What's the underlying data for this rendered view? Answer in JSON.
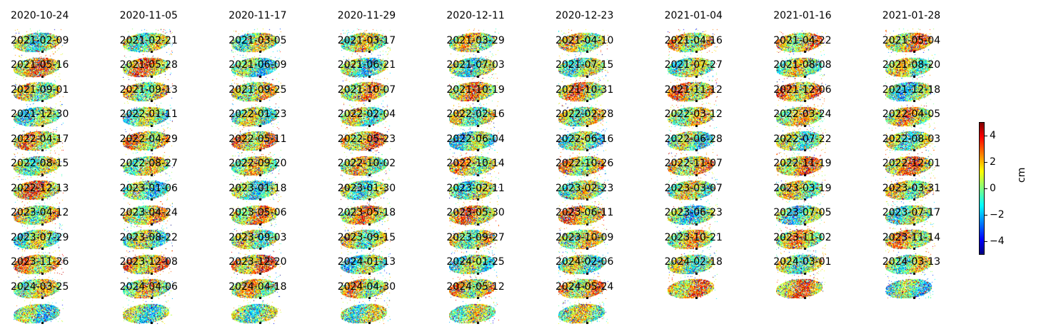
{
  "chart_data": {
    "type": "heatmap",
    "title": "",
    "xlabel": "",
    "ylabel": "",
    "layout": {
      "columns": 9
    },
    "panel_dates": [
      "2020-10-24",
      "2020-11-05",
      "2020-11-17",
      "2020-11-29",
      "2020-12-11",
      "2020-12-23",
      "2021-01-04",
      "2021-01-16",
      "2021-01-28",
      "2021-02-09",
      "2021-02-21",
      "2021-03-05",
      "2021-03-17",
      "2021-03-29",
      "2021-04-10",
      "2021-04-16",
      "2021-04-22",
      "2021-05-04",
      "2021-05-16",
      "2021-05-28",
      "2021-06-09",
      "2021-06-21",
      "2021-07-03",
      "2021-07-15",
      "2021-07-27",
      "2021-08-08",
      "2021-08-20",
      "2021-09-01",
      "2021-09-13",
      "2021-09-25",
      "2021-10-07",
      "2021-10-19",
      "2021-10-31",
      "2021-11-12",
      "2021-12-06",
      "2021-12-18",
      "2021-12-30",
      "2022-01-11",
      "2022-01-23",
      "2022-02-04",
      "2022-02-16",
      "2022-02-28",
      "2022-03-12",
      "2022-03-24",
      "2022-04-05",
      "2022-04-17",
      "2022-04-29",
      "2022-05-11",
      "2022-05-23",
      "2022-06-04",
      "2022-06-16",
      "2022-06-28",
      "2022-07-22",
      "2022-08-03",
      "2022-08-15",
      "2022-08-27",
      "2022-09-20",
      "2022-10-02",
      "2022-10-14",
      "2022-10-26",
      "2022-11-07",
      "2022-11-19",
      "2022-12-01",
      "2022-12-13",
      "2023-01-06",
      "2023-01-18",
      "2023-01-30",
      "2023-02-11",
      "2023-02-23",
      "2023-03-07",
      "2023-03-19",
      "2023-03-31",
      "2023-04-12",
      "2023-04-24",
      "2023-05-06",
      "2023-05-18",
      "2023-05-30",
      "2023-06-11",
      "2023-06-23",
      "2023-07-05",
      "2023-07-17",
      "2023-07-29",
      "2023-08-22",
      "2023-09-03",
      "2023-09-15",
      "2023-09-27",
      "2023-10-09",
      "2023-10-21",
      "2023-11-02",
      "2023-11-14",
      "2023-11-26",
      "2023-12-08",
      "2023-12-20",
      "2024-01-13",
      "2024-01-25",
      "2024-02-06",
      "2024-02-18",
      "2024-03-01",
      "2024-03-13",
      "2024-03-25",
      "2024-04-06",
      "2024-04-18",
      "2024-04-30",
      "2024-05-12",
      "2024-05-24"
    ],
    "colorbar": {
      "label": "cm",
      "range": [
        -5,
        5
      ],
      "ticks": [
        -4,
        -2,
        0,
        2,
        4
      ],
      "tick_labels": [
        "−4",
        "−2",
        "0",
        "2",
        "4"
      ],
      "colormap": "jet"
    }
  }
}
